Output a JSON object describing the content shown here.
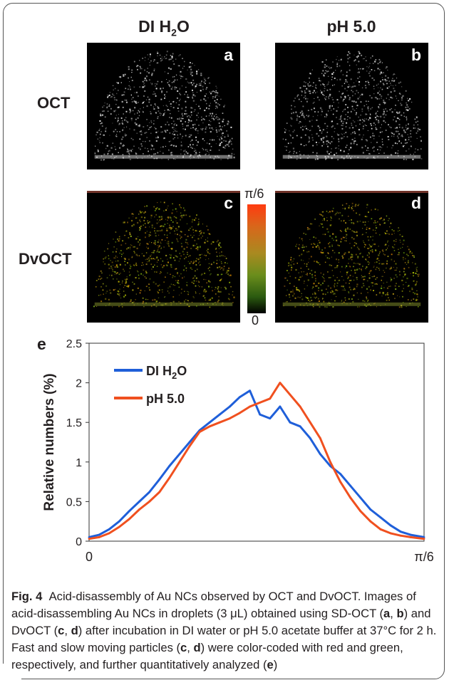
{
  "panels": {
    "col_titles": [
      "DI H",
      "2",
      "O",
      "pH 5.0"
    ],
    "row_labels": [
      "OCT",
      "DvOCT"
    ],
    "letters": [
      "a",
      "b",
      "c",
      "d",
      "e"
    ],
    "colorbar": {
      "max_label": "π/6",
      "min_label": "0",
      "colors": {
        "high": "#ff3b10",
        "mid": "#a98a20",
        "low": "#2b5a10",
        "zero": "#000000"
      }
    }
  },
  "chart_data": {
    "type": "line",
    "ylabel": "Relative numbers (%)",
    "x_tick_labels": [
      "0",
      "π/6"
    ],
    "y_tick_labels": [
      "0",
      "0.5",
      "1",
      "1.5",
      "2",
      "2.5"
    ],
    "ylim": [
      0,
      2.5
    ],
    "xlim": [
      0,
      1
    ],
    "legend_placement": "top-left",
    "series": [
      {
        "name": "DI H2O",
        "legend_text": [
          "DI H",
          "2",
          "O"
        ],
        "color": "#1f5fd9",
        "x": [
          0,
          0.03,
          0.06,
          0.09,
          0.12,
          0.15,
          0.18,
          0.21,
          0.24,
          0.27,
          0.3,
          0.33,
          0.36,
          0.39,
          0.42,
          0.45,
          0.48,
          0.51,
          0.54,
          0.57,
          0.6,
          0.63,
          0.66,
          0.69,
          0.72,
          0.75,
          0.78,
          0.81,
          0.84,
          0.87,
          0.9,
          0.93,
          0.96,
          1.0
        ],
        "y": [
          0.05,
          0.08,
          0.15,
          0.25,
          0.38,
          0.5,
          0.62,
          0.78,
          0.95,
          1.1,
          1.25,
          1.4,
          1.5,
          1.6,
          1.7,
          1.82,
          1.9,
          1.6,
          1.55,
          1.7,
          1.5,
          1.45,
          1.3,
          1.1,
          0.95,
          0.85,
          0.7,
          0.55,
          0.4,
          0.3,
          0.2,
          0.12,
          0.08,
          0.05
        ]
      },
      {
        "name": "pH 5.0",
        "legend_text": [
          "pH 5.0"
        ],
        "color": "#f0501f",
        "x": [
          0,
          0.03,
          0.06,
          0.09,
          0.12,
          0.15,
          0.18,
          0.21,
          0.24,
          0.27,
          0.3,
          0.33,
          0.36,
          0.39,
          0.42,
          0.45,
          0.48,
          0.51,
          0.54,
          0.57,
          0.6,
          0.63,
          0.66,
          0.69,
          0.72,
          0.75,
          0.78,
          0.81,
          0.84,
          0.87,
          0.9,
          0.93,
          0.96,
          1.0
        ],
        "y": [
          0.03,
          0.05,
          0.1,
          0.18,
          0.28,
          0.4,
          0.5,
          0.62,
          0.8,
          1.0,
          1.2,
          1.38,
          1.45,
          1.5,
          1.55,
          1.62,
          1.7,
          1.75,
          1.8,
          2.0,
          1.85,
          1.7,
          1.5,
          1.3,
          1.0,
          0.75,
          0.55,
          0.38,
          0.25,
          0.15,
          0.1,
          0.07,
          0.05,
          0.03
        ]
      }
    ]
  },
  "caption": {
    "fig_label": "Fig. 4",
    "segments": [
      "Acid-disassembly of Au NCs observed by OCT and DvOCT. Images of acid-disassembling Au NCs in droplets (3 μL) obtained using SD-OCT (",
      "a",
      ", ",
      "b",
      ") and DvOCT (",
      "c",
      ", ",
      "d",
      ") after incubation in DI water or pH 5.0 acetate buffer at 37°C for 2 h. Fast and slow moving particles (",
      "c",
      ", ",
      "d",
      ") were color-coded with red and green, respectively, and further quantitatively analyzed (",
      "e",
      ")"
    ]
  }
}
